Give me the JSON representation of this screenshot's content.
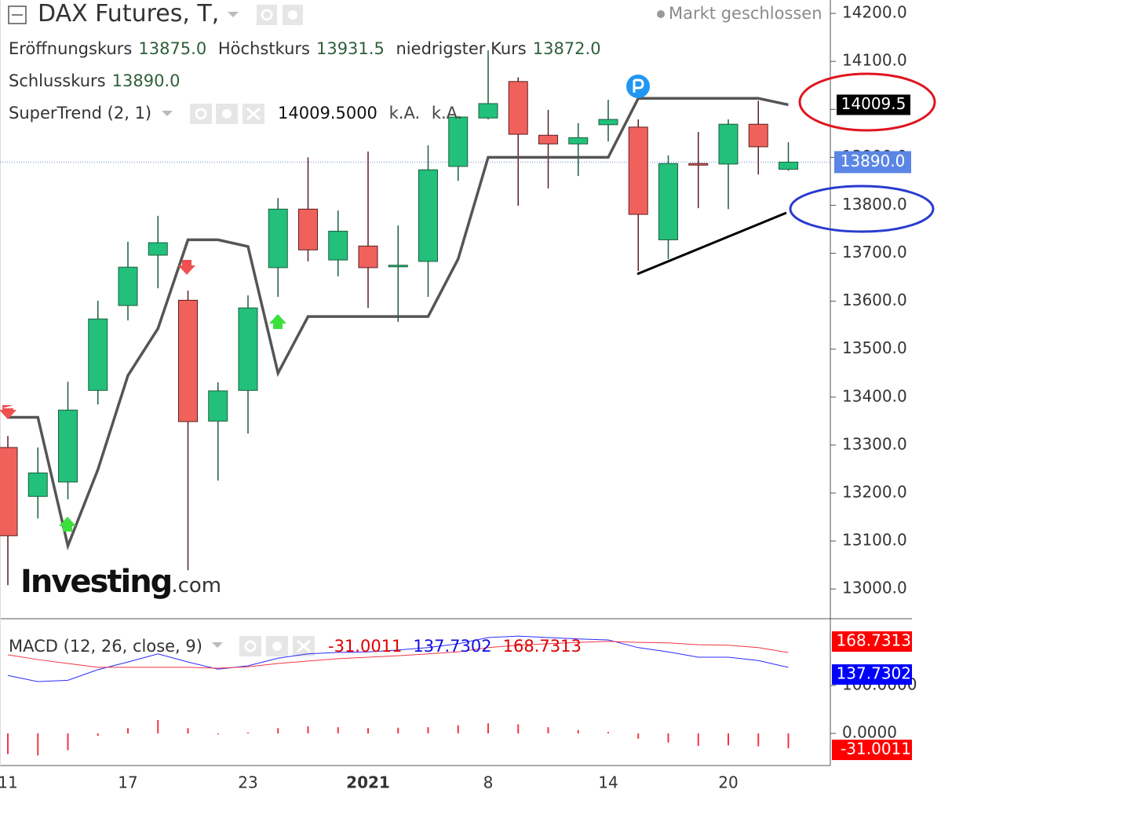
{
  "chart_data": [
    {
      "type": "candlestick",
      "title": "DAX Futures, T,",
      "status": "Markt geschlossen",
      "categories": [
        "11",
        null,
        null,
        null,
        "17",
        null,
        null,
        null,
        "23",
        null,
        null,
        null,
        "2021",
        null,
        null,
        null,
        "8",
        null,
        null,
        null,
        "14",
        null,
        null,
        null,
        "20",
        null,
        null
      ],
      "open": [
        13295,
        13193,
        13223,
        13414,
        13591,
        13696,
        13602,
        13350,
        13414,
        13670,
        13792,
        13686,
        13715,
        13673,
        13683,
        13881,
        13982,
        14058,
        13946,
        13928,
        13968,
        13963,
        13728,
        13887,
        13886,
        13969,
        13875
      ],
      "high": [
        13319,
        13295,
        13432,
        13601,
        13724,
        13778,
        13622,
        13431,
        13612,
        13815,
        13900,
        13789,
        13912,
        13758,
        13925,
        13986,
        14123,
        14067,
        13999,
        13971,
        14020,
        13979,
        13904,
        13953,
        13979,
        14018,
        13931.5
      ],
      "low": [
        13008,
        13147,
        13187,
        13385,
        13560,
        13627,
        13039,
        13226,
        13324,
        13609,
        13683,
        13652,
        13586,
        13557,
        13609,
        13851,
        13979,
        13799,
        13835,
        13861,
        13933,
        13663,
        13688,
        13794,
        13792,
        13864,
        13872
      ],
      "close": [
        13111,
        13242,
        13373,
        13563,
        13671,
        13722,
        13349,
        13413,
        13586,
        13792,
        13707,
        13746,
        13670,
        13675,
        13874,
        13984,
        14012,
        13948,
        13928,
        13941,
        13979,
        13781,
        13887,
        13884,
        13969,
        13922,
        13890
      ],
      "up_color": "#22c07b",
      "down_color": "#f0615c",
      "legend": [
        {
          "label": "Eröffnungskurs",
          "value": "13875.0"
        },
        {
          "label": "Höchstkurs",
          "value": "13931.5"
        },
        {
          "label": "niedrigster Kurs",
          "value": "13872.0"
        },
        {
          "label": "Schlusskurs",
          "value": "13890.0"
        }
      ],
      "supertrend": {
        "name": "SuperTrend (2, 1)",
        "color": "#555555",
        "values": [
          13358,
          13358,
          13090,
          13249,
          13445,
          13543,
          13728,
          13728,
          13714,
          13450,
          13568,
          13568,
          13568,
          13568,
          13568,
          13688,
          13900,
          13900,
          13900,
          13900,
          13900,
          14023,
          14023,
          14023,
          14023,
          14023,
          14009.5
        ],
        "legend_value": "14009.5000",
        "legend_extra": [
          "k.A.",
          "k.A."
        ],
        "value_label": "14009.5"
      },
      "ylim": [
        12938,
        14228
      ],
      "yticks": [
        {
          "value": 13000,
          "label": "13000.0"
        },
        {
          "value": 13100,
          "label": "13100.0"
        },
        {
          "value": 13200,
          "label": "13200.0"
        },
        {
          "value": 13300,
          "label": "13300.0"
        },
        {
          "value": 13400,
          "label": "13400.0"
        },
        {
          "value": 13500,
          "label": "13500.0"
        },
        {
          "value": 13600,
          "label": "13600.0"
        },
        {
          "value": 13700,
          "label": "13700.0"
        },
        {
          "value": 13800,
          "label": "13800.0"
        },
        {
          "value": 13900,
          "label": "13900.0"
        },
        {
          "value": 14000,
          "label": "14000.0"
        },
        {
          "value": 14100,
          "label": "14100.0"
        },
        {
          "value": 14200,
          "label": "14200.0"
        }
      ]
    },
    {
      "type": "macd",
      "title": "MACD (12, 26, close, 9)",
      "histogram": {
        "color": "#f23645",
        "values": [
          -43,
          -46,
          -35,
          -5,
          11,
          28,
          11,
          -2,
          2,
          11,
          15,
          13,
          11,
          12,
          13,
          17,
          21,
          19,
          13,
          7,
          3,
          -11,
          -19,
          -26,
          -25,
          -27,
          -31.0011
        ],
        "value_label": "-31.0011"
      },
      "series": [
        {
          "color": "#2b2bff",
          "values": [
            121,
            108,
            111,
            133,
            149,
            166,
            149,
            134,
            141,
            157,
            166,
            169,
            170,
            174,
            179,
            187,
            200,
            203,
            200,
            197,
            195,
            179,
            170,
            159,
            159,
            152,
            137.7302
          ],
          "value_label": "137.7302"
        },
        {
          "color": "#f23645",
          "values": [
            164,
            154,
            146,
            138,
            138,
            138,
            138,
            136,
            139,
            146,
            151,
            156,
            159,
            162,
            166,
            170,
            179,
            184,
            187,
            190,
            192,
            190,
            189,
            185,
            184,
            179,
            168.7313
          ],
          "value_label": "168.7313"
        }
      ],
      "ylim": [
        -67,
        236
      ],
      "yticks": [
        {
          "value": 0,
          "label": "0.0000"
        },
        {
          "value": 100,
          "label": "100.0000"
        }
      ]
    }
  ],
  "logo": [
    "Investing",
    ".com"
  ]
}
